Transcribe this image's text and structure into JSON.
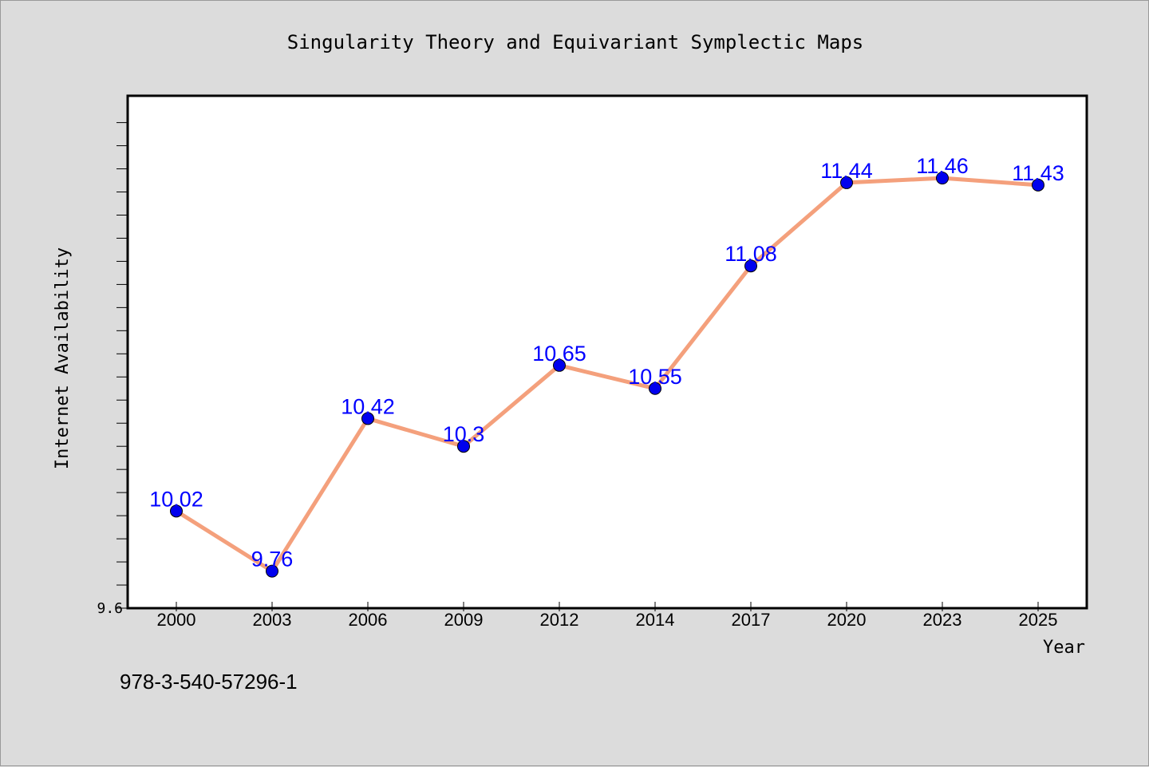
{
  "chart_data": {
    "type": "line",
    "title": "Singularity Theory and Equivariant Symplectic Maps",
    "xlabel": "Year",
    "ylabel": "Internet Availability",
    "categories": [
      "2000",
      "2003",
      "2006",
      "2009",
      "2012",
      "2014",
      "2017",
      "2020",
      "2023",
      "2025"
    ],
    "series": [
      {
        "values": [
          10.02,
          9.76,
          10.42,
          10.3,
          10.65,
          10.55,
          11.08,
          11.44,
          11.46,
          11.43
        ],
        "labels": [
          "10.02",
          "9.76",
          "10.42",
          "10.3",
          "10.65",
          "10.55",
          "11.08",
          "11.44",
          "11.46",
          "11.43"
        ],
        "line_color": "#f4a07c",
        "marker_color": "#0000ee",
        "label_color": "#0000ff"
      }
    ],
    "ylim": [
      9.6,
      11.816
    ],
    "y_tick_labels": [
      {
        "value": 9.6,
        "label": "9.6"
      }
    ],
    "grid": false,
    "legend": "none",
    "footer_text": "978-3-540-57296-1"
  }
}
